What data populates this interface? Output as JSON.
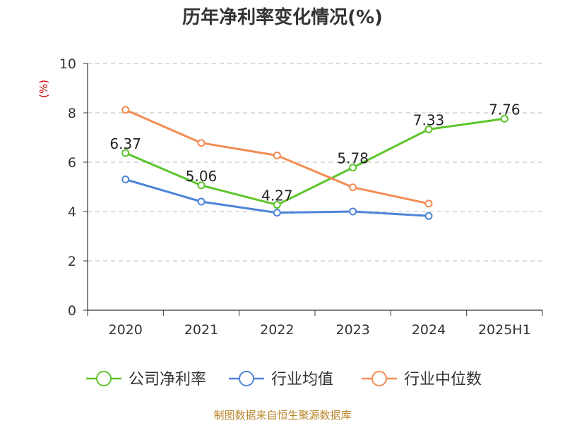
{
  "chart_data": {
    "type": "line",
    "title": "历年净利率变化情况(%)",
    "ylabel": "(%)",
    "categories": [
      "2020",
      "2021",
      "2022",
      "2023",
      "2024",
      "2025H1"
    ],
    "ylim": [
      0,
      10
    ],
    "yticks": [
      0,
      2,
      4,
      6,
      8,
      10
    ],
    "grid": true,
    "legend_position": "bottom",
    "series": [
      {
        "name": "公司净利率",
        "color": "#5cc42a",
        "show_labels": true,
        "values": [
          6.37,
          5.06,
          4.27,
          5.78,
          7.33,
          7.76
        ]
      },
      {
        "name": "行业均值",
        "color": "#4d84d8",
        "show_labels": false,
        "values": [
          5.3,
          4.4,
          3.95,
          4.0,
          3.82,
          null
        ]
      },
      {
        "name": "行业中位数",
        "color": "#f28c52",
        "show_labels": false,
        "values": [
          8.12,
          6.78,
          6.27,
          4.98,
          4.32,
          null
        ]
      }
    ]
  },
  "footer": {
    "source": "制图数据来自恒生聚源数据库"
  }
}
